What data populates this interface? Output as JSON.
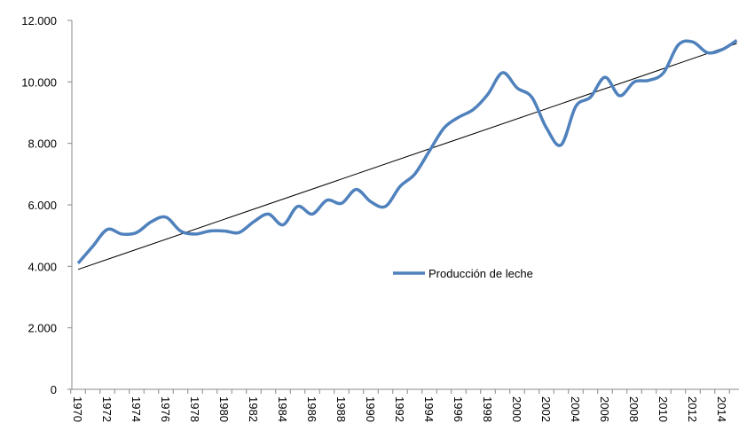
{
  "chart_data": {
    "type": "line",
    "categories": [
      "1970",
      null,
      "1972",
      null,
      "1974",
      null,
      "1976",
      null,
      "1978",
      null,
      "1980",
      null,
      "1982",
      null,
      "1984",
      null,
      "1986",
      null,
      "1988",
      null,
      "1990",
      null,
      "1992",
      null,
      "1994",
      null,
      "1996",
      null,
      "1998",
      null,
      "2000",
      null,
      "2002",
      null,
      "2004",
      null,
      "2006",
      null,
      "2008",
      null,
      "2010",
      null,
      "2012",
      null,
      "2014",
      null
    ],
    "series": [
      {
        "name": "Producción de leche",
        "color": "#4f81bd",
        "values": [
          4100,
          4650,
          5200,
          5050,
          5100,
          5450,
          5600,
          5150,
          5050,
          5150,
          5150,
          5100,
          5450,
          5700,
          5350,
          5950,
          5700,
          6150,
          6050,
          6500,
          6100,
          5950,
          6600,
          7000,
          7750,
          8500,
          8850,
          9100,
          9600,
          10300,
          9800,
          9500,
          8500,
          7950,
          9200,
          9500,
          10150,
          9550,
          10000,
          10050,
          10300,
          11200,
          11300,
          10950,
          11050,
          11350
        ]
      }
    ],
    "trendline": {
      "color": "#000000",
      "start": 3900,
      "end": 11250
    },
    "ylim": [
      0,
      12000
    ],
    "yticks": [
      {
        "value": 0,
        "label": "0"
      },
      {
        "value": 2000,
        "label": "2.000"
      },
      {
        "value": 4000,
        "label": "4.000"
      },
      {
        "value": 6000,
        "label": "6.000"
      },
      {
        "value": 8000,
        "label": "8.000"
      },
      {
        "value": 10000,
        "label": "10.000"
      },
      {
        "value": 12000,
        "label": "12.000"
      }
    ],
    "legend": "center",
    "smooth": true
  }
}
